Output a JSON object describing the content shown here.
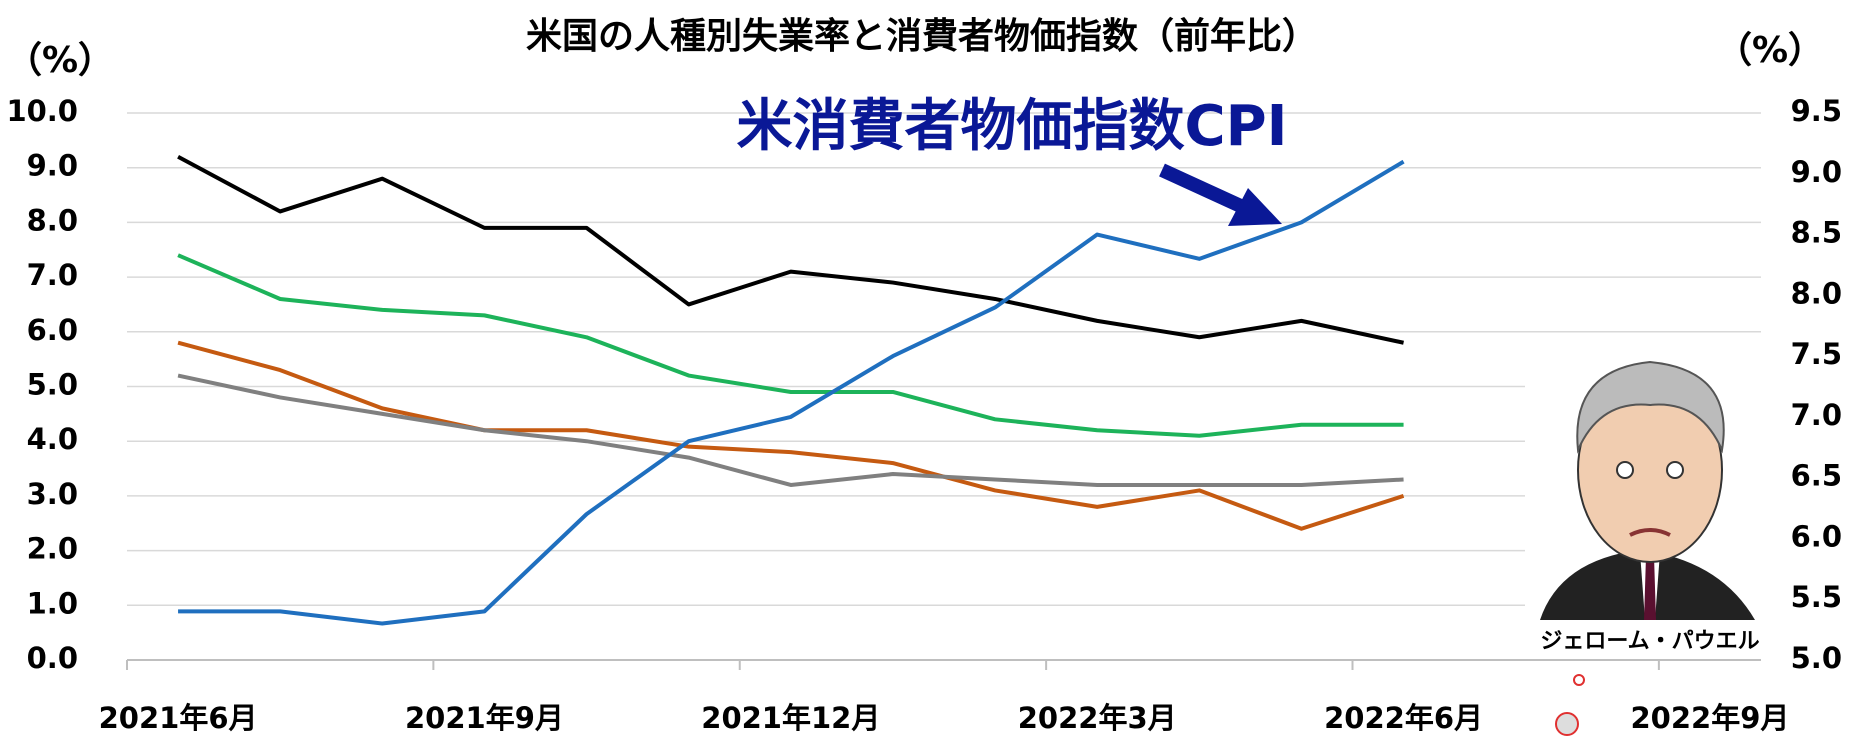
{
  "chart_data": {
    "type": "line",
    "title": "米国の人種別失業率と消費者物価指数（前年比）",
    "y_label": "（%）",
    "y2_label": "（%）",
    "annotation": "米消費者物価指数CPI",
    "caption": "ジェローム・パウエル",
    "categories": [
      "2021年6月",
      null,
      null,
      "2021年9月",
      null,
      null,
      "2021年12月",
      null,
      null,
      "2022年3月",
      null,
      null,
      "2022年6月",
      null,
      null,
      "2022年9月"
    ],
    "ylim": [
      0,
      10
    ],
    "yticks": [
      {
        "value": 0,
        "label": "0.0"
      },
      {
        "value": 1,
        "label": "1.0"
      },
      {
        "value": 2,
        "label": "2.0"
      },
      {
        "value": 3,
        "label": "3.0"
      },
      {
        "value": 4,
        "label": "4.0"
      },
      {
        "value": 5,
        "label": "5.0"
      },
      {
        "value": 6,
        "label": "6.0"
      },
      {
        "value": 7,
        "label": "7.0"
      },
      {
        "value": 8,
        "label": "8.0"
      },
      {
        "value": 9,
        "label": "9.0"
      },
      {
        "value": 10,
        "label": "10.0"
      }
    ],
    "y2lim": [
      5,
      9.5
    ],
    "y2ticks": [
      {
        "value": 5,
        "label": "5.0"
      },
      5.5,
      {
        "value": 6,
        "label": "6.0"
      },
      6.5,
      {
        "value": 7,
        "label": "7.0"
      },
      7.5,
      {
        "value": 8,
        "label": "8.0"
      },
      8.5,
      {
        "value": 9,
        "label": "9.0"
      },
      9.5
    ],
    "grid": true,
    "series": [
      {
        "color": "#000000",
        "values": [
          9.2,
          8.2,
          8.8,
          7.9,
          7.9,
          6.5,
          7.1,
          6.9,
          6.6,
          6.2,
          5.9,
          6.2,
          5.8,
          null,
          null,
          null
        ]
      },
      {
        "color": "#1db35a",
        "values": [
          7.4,
          6.6,
          6.4,
          6.3,
          5.9,
          5.2,
          4.9,
          4.9,
          4.4,
          4.2,
          4.1,
          4.3,
          4.3,
          null,
          null,
          null
        ]
      },
      {
        "color": "#c55a11",
        "values": [
          5.8,
          5.3,
          4.6,
          4.2,
          4.2,
          3.9,
          3.8,
          3.6,
          3.1,
          2.8,
          3.1,
          2.4,
          3.0,
          null,
          null,
          null
        ]
      },
      {
        "color": "#808080",
        "values": [
          5.2,
          4.8,
          4.5,
          4.2,
          4.0,
          3.7,
          3.2,
          3.4,
          3.3,
          3.2,
          3.2,
          3.2,
          3.3,
          null,
          null,
          null
        ]
      },
      {
        "color": "#1f6fbf",
        "axis": "y2",
        "values": [
          5.4,
          5.4,
          5.3,
          5.4,
          6.2,
          6.8,
          7.0,
          7.5,
          7.9,
          8.5,
          8.3,
          8.6,
          9.1,
          null,
          null,
          null
        ]
      }
    ]
  }
}
